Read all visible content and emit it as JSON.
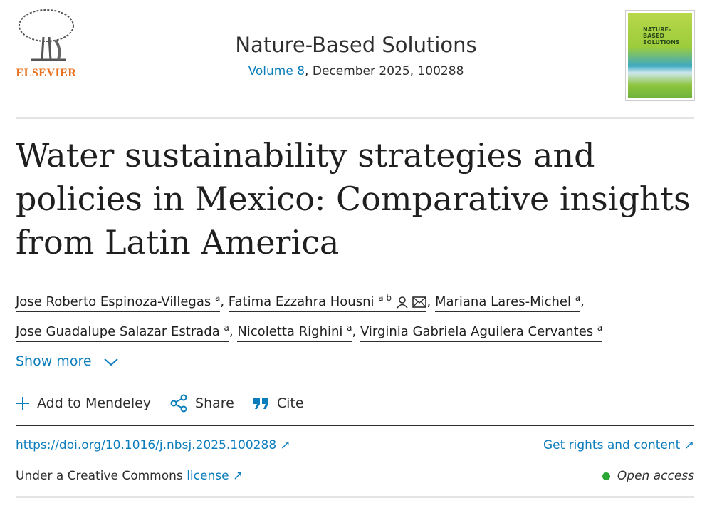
{
  "publisher": {
    "name": "ELSEVIER",
    "color": "#e9711c"
  },
  "journal": {
    "title": "Nature-Based Solutions",
    "volume_link": "Volume 8",
    "issue_rest": ", December 2025, 100288",
    "cover_text": "NATURE-BASED SOLUTIONS"
  },
  "article": {
    "title": "Water sustainability strategies and policies in Mexico: Comparative insights from Latin America"
  },
  "authors": [
    {
      "name": "Jose Roberto Espinoza-Villegas",
      "aff": "a"
    },
    {
      "name": "Fatima Ezzahra Housni",
      "aff": "a b"
    },
    {
      "name": "Mariana Lares-Michel",
      "aff": "a"
    },
    {
      "name": "Jose Guadalupe Salazar Estrada",
      "aff": "a"
    },
    {
      "name": "Nicoletta Righini",
      "aff": "a"
    },
    {
      "name": "Virginia Gabriela Aguilera Cervantes",
      "aff": "a"
    }
  ],
  "show_more": "Show more",
  "toolbar": {
    "mendeley": "Add to Mendeley",
    "share": "Share",
    "cite": "Cite"
  },
  "links": {
    "doi": "https://doi.org/10.1016/j.nbsj.2025.100288",
    "rights": "Get rights and content",
    "license_prefix": "Under a Creative Commons ",
    "license_link": "license",
    "open_access": "Open access"
  },
  "colors": {
    "link": "#0c7dbb",
    "open_access_dot": "#29a634"
  }
}
